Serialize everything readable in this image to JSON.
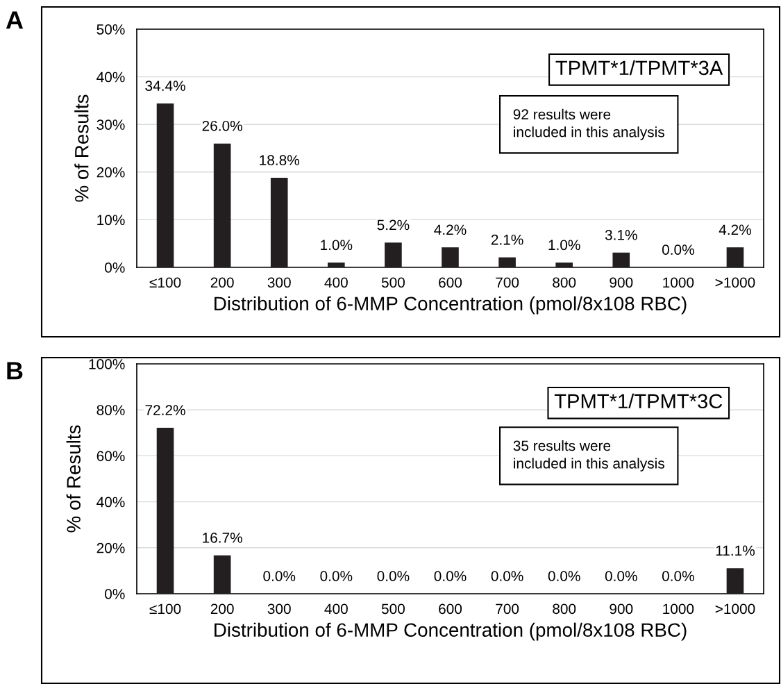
{
  "chart_data": [
    {
      "type": "bar",
      "xlabel": "Distribution of 6-MMP Concentration (pmol/8x108 RBC)",
      "ylabel": "% of Results",
      "categories": [
        "≤100",
        "200",
        "300",
        "400",
        "500",
        "600",
        "700",
        "800",
        "900",
        "1000",
        ">1000"
      ],
      "values": [
        34.4,
        26.0,
        18.8,
        1.0,
        5.2,
        4.2,
        2.1,
        1.0,
        3.1,
        0.0,
        4.2
      ],
      "value_labels": [
        "34.4%",
        "26.0%",
        "18.8%",
        "1.0%",
        "5.2%",
        "4.2%",
        "2.1%",
        "1.0%",
        "3.1%",
        "0.0%",
        "4.2%"
      ],
      "color": "#231f20",
      "ylim": [
        0,
        50
      ],
      "yticks": [
        {
          "value": 0,
          "label": "0%"
        },
        {
          "value": 10,
          "label": "10%"
        },
        {
          "value": 20,
          "label": "20%"
        },
        {
          "value": 30,
          "label": "30%"
        },
        {
          "value": 40,
          "label": "40%"
        },
        {
          "value": 50,
          "label": "50%"
        }
      ],
      "grid": "y",
      "annotations": [
        "A",
        "TPMT*1/TPMT*3A",
        "92 results were\nincluded in this analysis"
      ]
    },
    {
      "type": "bar",
      "xlabel": "Distribution of 6-MMP Concentration (pmol/8x108 RBC)",
      "ylabel": "% of Results",
      "categories": [
        "≤100",
        "200",
        "300",
        "400",
        "500",
        "600",
        "700",
        "800",
        "900",
        "1000",
        ">1000"
      ],
      "values": [
        72.2,
        16.7,
        0.0,
        0.0,
        0.0,
        0.0,
        0.0,
        0.0,
        0.0,
        0.0,
        11.1
      ],
      "value_labels": [
        "72.2%",
        "16.7%",
        "0.0%",
        "0.0%",
        "0.0%",
        "0.0%",
        "0.0%",
        "0.0%",
        "0.0%",
        "0.0%",
        "11.1%"
      ],
      "color": "#231f20",
      "ylim": [
        0,
        100
      ],
      "yticks": [
        {
          "value": 0,
          "label": "0%"
        },
        {
          "value": 20,
          "label": "20%"
        },
        {
          "value": 40,
          "label": "40%"
        },
        {
          "value": 60,
          "label": "60%"
        },
        {
          "value": 80,
          "label": "80%"
        },
        {
          "value": 100,
          "label": "100%"
        }
      ],
      "grid": "y",
      "annotations": [
        "B",
        "TPMT*1/TPMT*3C",
        "35 results were\nincluded in this analysis"
      ]
    }
  ]
}
